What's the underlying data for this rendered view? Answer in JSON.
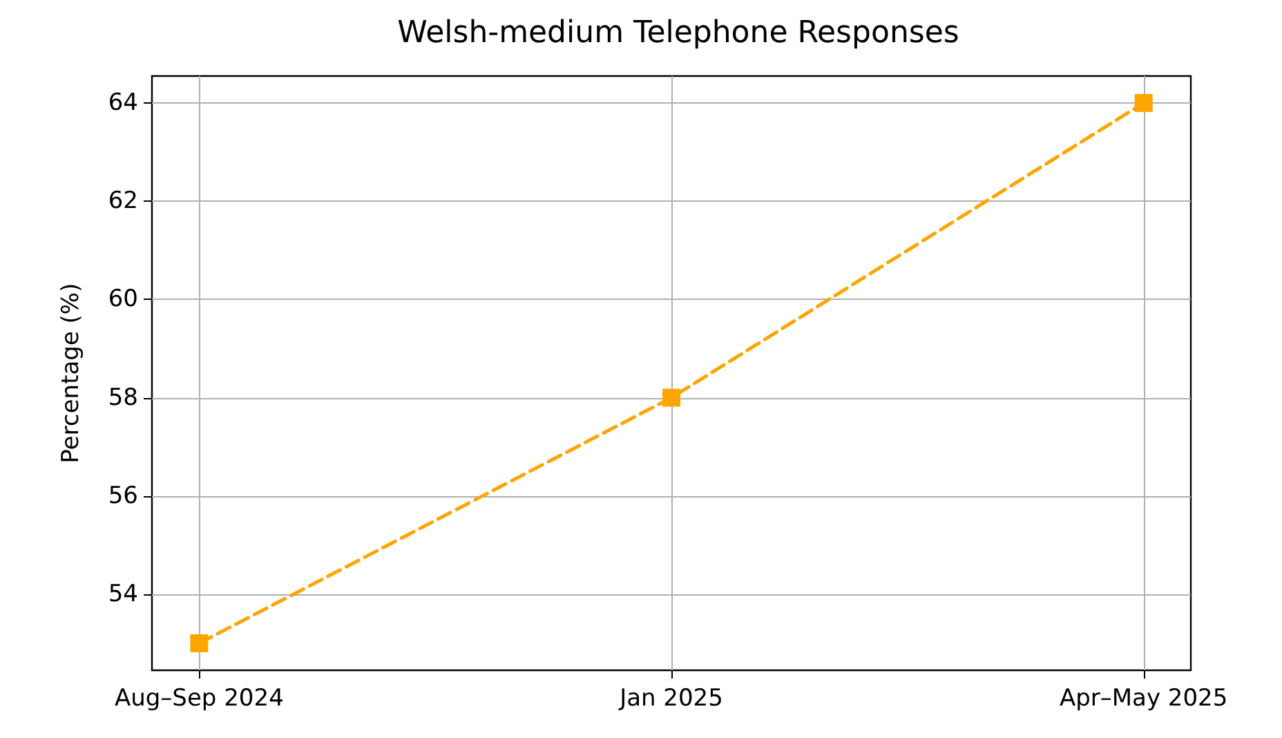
{
  "chart_data": {
    "type": "line",
    "title": "Welsh-medium Telephone Responses",
    "ylabel": "Percentage (%)",
    "categories": [
      "Aug–Sep 2024",
      "Jan 2025",
      "Apr–May 2025"
    ],
    "series": [
      {
        "color": "#ffa500",
        "values": [
          53,
          58,
          64
        ]
      }
    ],
    "ylim": [
      52.45,
      64.55
    ],
    "yticks": [
      54,
      56,
      58,
      60,
      62,
      64
    ],
    "grid": true,
    "marker": "square",
    "line_style": "dashed"
  }
}
